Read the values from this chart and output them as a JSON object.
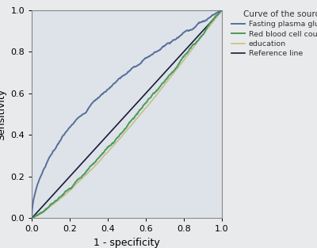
{
  "xlabel": "1 - specificity",
  "ylabel": "Sensitivity",
  "legend_title": "Curve of the source",
  "legend_entries": [
    {
      "label": "Fasting plasma glucose",
      "color": "#5a6e9c",
      "lw": 1.4
    },
    {
      "label": "Red blood cell count",
      "color": "#4a9a5a",
      "lw": 1.4
    },
    {
      "label": "education",
      "color": "#c8be8a",
      "lw": 1.2
    },
    {
      "label": "Reference line",
      "color": "#1a1a3a",
      "lw": 1.2
    }
  ],
  "xlim": [
    0.0,
    1.0
  ],
  "ylim": [
    0.0,
    1.0
  ],
  "xticks": [
    0.0,
    0.2,
    0.4,
    0.6,
    0.8,
    1.0
  ],
  "yticks": [
    0.0,
    0.2,
    0.4,
    0.6,
    0.8,
    1.0
  ],
  "plot_bg": "#dde3e8",
  "fig_bg": "#e8eaec",
  "tick_fontsize": 8,
  "label_fontsize": 9,
  "legend_fontsize": 6.8,
  "legend_title_fontsize": 7.5
}
